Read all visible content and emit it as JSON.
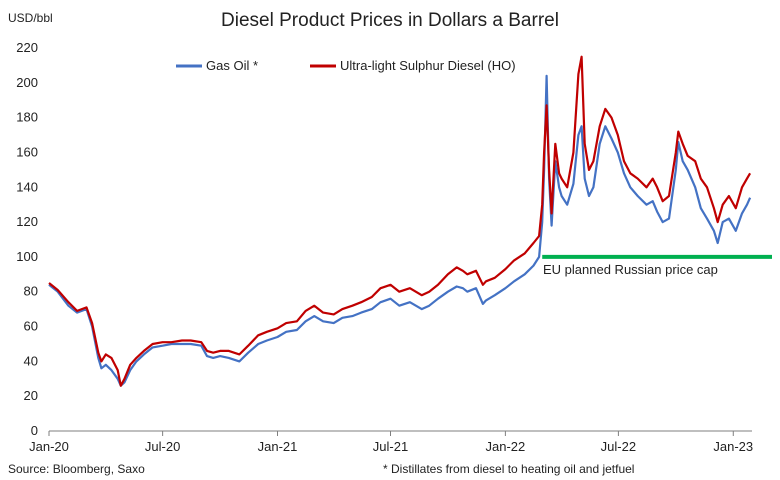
{
  "chart_data": {
    "type": "line",
    "title": "Diesel Product Prices in Dollars a Barrel",
    "ylabel": "USD/bbl",
    "ylim": [
      0,
      220
    ],
    "yticks": [
      "0",
      "20",
      "40",
      "60",
      "80",
      "100",
      "120",
      "140",
      "160",
      "180",
      "200",
      "220"
    ],
    "xlim": [
      "2020-01-01",
      "2023-01-31"
    ],
    "xticks": [
      {
        "date": "2020-01-01",
        "label": "Jan-20"
      },
      {
        "date": "2020-07-01",
        "label": "Jul-20"
      },
      {
        "date": "2021-01-01",
        "label": "Jan-21"
      },
      {
        "date": "2021-07-01",
        "label": "Jul-21"
      },
      {
        "date": "2022-01-01",
        "label": "Jan-22"
      },
      {
        "date": "2022-07-01",
        "label": "Jul-22"
      },
      {
        "date": "2023-01-01",
        "label": "Jan-23"
      }
    ],
    "grid": false,
    "legend_position": "top-center",
    "series": [
      {
        "name": "Gas Oil *",
        "color": "#4472C4",
        "points": [
          [
            "2020-01-01",
            84
          ],
          [
            "2020-01-15",
            80
          ],
          [
            "2020-02-01",
            72
          ],
          [
            "2020-02-15",
            68
          ],
          [
            "2020-03-01",
            70
          ],
          [
            "2020-03-10",
            60
          ],
          [
            "2020-03-20",
            42
          ],
          [
            "2020-03-25",
            36
          ],
          [
            "2020-04-01",
            38
          ],
          [
            "2020-04-10",
            35
          ],
          [
            "2020-04-20",
            30
          ],
          [
            "2020-04-25",
            26
          ],
          [
            "2020-05-01",
            28
          ],
          [
            "2020-05-10",
            35
          ],
          [
            "2020-05-20",
            40
          ],
          [
            "2020-06-01",
            44
          ],
          [
            "2020-06-15",
            48
          ],
          [
            "2020-07-01",
            49
          ],
          [
            "2020-07-15",
            50
          ],
          [
            "2020-08-01",
            50
          ],
          [
            "2020-08-15",
            50
          ],
          [
            "2020-09-01",
            49
          ],
          [
            "2020-09-10",
            43
          ],
          [
            "2020-09-20",
            42
          ],
          [
            "2020-10-01",
            43
          ],
          [
            "2020-10-15",
            42
          ],
          [
            "2020-11-01",
            40
          ],
          [
            "2020-11-15",
            45
          ],
          [
            "2020-12-01",
            50
          ],
          [
            "2020-12-15",
            52
          ],
          [
            "2021-01-01",
            54
          ],
          [
            "2021-01-15",
            57
          ],
          [
            "2021-02-01",
            58
          ],
          [
            "2021-02-15",
            63
          ],
          [
            "2021-03-01",
            66
          ],
          [
            "2021-03-15",
            63
          ],
          [
            "2021-04-01",
            62
          ],
          [
            "2021-04-15",
            65
          ],
          [
            "2021-05-01",
            66
          ],
          [
            "2021-05-15",
            68
          ],
          [
            "2021-06-01",
            70
          ],
          [
            "2021-06-15",
            74
          ],
          [
            "2021-07-01",
            76
          ],
          [
            "2021-07-15",
            72
          ],
          [
            "2021-08-01",
            74
          ],
          [
            "2021-08-20",
            70
          ],
          [
            "2021-09-01",
            72
          ],
          [
            "2021-09-15",
            76
          ],
          [
            "2021-10-01",
            80
          ],
          [
            "2021-10-15",
            83
          ],
          [
            "2021-10-25",
            82
          ],
          [
            "2021-11-01",
            80
          ],
          [
            "2021-11-15",
            82
          ],
          [
            "2021-11-26",
            73
          ],
          [
            "2021-12-01",
            75
          ],
          [
            "2021-12-15",
            78
          ],
          [
            "2022-01-01",
            82
          ],
          [
            "2022-01-15",
            86
          ],
          [
            "2022-02-01",
            90
          ],
          [
            "2022-02-15",
            95
          ],
          [
            "2022-02-24",
            100
          ],
          [
            "2022-03-01",
            120
          ],
          [
            "2022-03-04",
            150
          ],
          [
            "2022-03-08",
            204
          ],
          [
            "2022-03-12",
            145
          ],
          [
            "2022-03-16",
            118
          ],
          [
            "2022-03-22",
            155
          ],
          [
            "2022-03-28",
            140
          ],
          [
            "2022-04-01",
            135
          ],
          [
            "2022-04-10",
            130
          ],
          [
            "2022-04-20",
            142
          ],
          [
            "2022-04-28",
            170
          ],
          [
            "2022-05-03",
            175
          ],
          [
            "2022-05-08",
            145
          ],
          [
            "2022-05-15",
            135
          ],
          [
            "2022-05-22",
            140
          ],
          [
            "2022-06-01",
            165
          ],
          [
            "2022-06-10",
            175
          ],
          [
            "2022-06-20",
            168
          ],
          [
            "2022-06-30",
            160
          ],
          [
            "2022-07-10",
            148
          ],
          [
            "2022-07-20",
            140
          ],
          [
            "2022-08-01",
            135
          ],
          [
            "2022-08-15",
            130
          ],
          [
            "2022-08-25",
            132
          ],
          [
            "2022-09-01",
            126
          ],
          [
            "2022-09-10",
            120
          ],
          [
            "2022-09-20",
            122
          ],
          [
            "2022-10-01",
            150
          ],
          [
            "2022-10-05",
            166
          ],
          [
            "2022-10-12",
            155
          ],
          [
            "2022-10-20",
            150
          ],
          [
            "2022-11-01",
            140
          ],
          [
            "2022-11-10",
            128
          ],
          [
            "2022-11-20",
            122
          ],
          [
            "2022-12-01",
            115
          ],
          [
            "2022-12-07",
            108
          ],
          [
            "2022-12-15",
            120
          ],
          [
            "2022-12-25",
            122
          ],
          [
            "2023-01-05",
            115
          ],
          [
            "2023-01-15",
            125
          ],
          [
            "2023-01-23",
            130
          ],
          [
            "2023-01-28",
            134
          ]
        ]
      },
      {
        "name": "Ultra-light Sulphur Diesel (HO)",
        "color": "#C00000",
        "points": [
          [
            "2020-01-01",
            85
          ],
          [
            "2020-01-15",
            81
          ],
          [
            "2020-02-01",
            74
          ],
          [
            "2020-02-15",
            69
          ],
          [
            "2020-03-01",
            71
          ],
          [
            "2020-03-10",
            62
          ],
          [
            "2020-03-20",
            45
          ],
          [
            "2020-03-25",
            40
          ],
          [
            "2020-04-01",
            44
          ],
          [
            "2020-04-10",
            42
          ],
          [
            "2020-04-20",
            35
          ],
          [
            "2020-04-25",
            26
          ],
          [
            "2020-05-01",
            30
          ],
          [
            "2020-05-10",
            38
          ],
          [
            "2020-05-20",
            42
          ],
          [
            "2020-06-01",
            46
          ],
          [
            "2020-06-15",
            50
          ],
          [
            "2020-07-01",
            51
          ],
          [
            "2020-07-15",
            51
          ],
          [
            "2020-08-01",
            52
          ],
          [
            "2020-08-15",
            52
          ],
          [
            "2020-09-01",
            51
          ],
          [
            "2020-09-10",
            46
          ],
          [
            "2020-09-20",
            45
          ],
          [
            "2020-10-01",
            46
          ],
          [
            "2020-10-15",
            46
          ],
          [
            "2020-11-01",
            44
          ],
          [
            "2020-11-15",
            49
          ],
          [
            "2020-12-01",
            55
          ],
          [
            "2020-12-15",
            57
          ],
          [
            "2021-01-01",
            59
          ],
          [
            "2021-01-15",
            62
          ],
          [
            "2021-02-01",
            63
          ],
          [
            "2021-02-15",
            69
          ],
          [
            "2021-03-01",
            72
          ],
          [
            "2021-03-15",
            68
          ],
          [
            "2021-04-01",
            67
          ],
          [
            "2021-04-15",
            70
          ],
          [
            "2021-05-01",
            72
          ],
          [
            "2021-05-15",
            74
          ],
          [
            "2021-06-01",
            77
          ],
          [
            "2021-06-15",
            82
          ],
          [
            "2021-07-01",
            84
          ],
          [
            "2021-07-15",
            80
          ],
          [
            "2021-08-01",
            82
          ],
          [
            "2021-08-20",
            78
          ],
          [
            "2021-09-01",
            80
          ],
          [
            "2021-09-15",
            84
          ],
          [
            "2021-10-01",
            90
          ],
          [
            "2021-10-15",
            94
          ],
          [
            "2021-10-25",
            92
          ],
          [
            "2021-11-01",
            90
          ],
          [
            "2021-11-15",
            92
          ],
          [
            "2021-11-26",
            84
          ],
          [
            "2021-12-01",
            86
          ],
          [
            "2021-12-15",
            88
          ],
          [
            "2022-01-01",
            93
          ],
          [
            "2022-01-15",
            98
          ],
          [
            "2022-02-01",
            102
          ],
          [
            "2022-02-15",
            108
          ],
          [
            "2022-02-24",
            112
          ],
          [
            "2022-03-01",
            130
          ],
          [
            "2022-03-04",
            160
          ],
          [
            "2022-03-08",
            187
          ],
          [
            "2022-03-12",
            150
          ],
          [
            "2022-03-16",
            125
          ],
          [
            "2022-03-22",
            165
          ],
          [
            "2022-03-28",
            148
          ],
          [
            "2022-04-01",
            145
          ],
          [
            "2022-04-10",
            140
          ],
          [
            "2022-04-20",
            160
          ],
          [
            "2022-04-28",
            205
          ],
          [
            "2022-05-03",
            215
          ],
          [
            "2022-05-08",
            165
          ],
          [
            "2022-05-15",
            150
          ],
          [
            "2022-05-22",
            155
          ],
          [
            "2022-06-01",
            175
          ],
          [
            "2022-06-10",
            185
          ],
          [
            "2022-06-20",
            180
          ],
          [
            "2022-06-30",
            170
          ],
          [
            "2022-07-10",
            155
          ],
          [
            "2022-07-20",
            148
          ],
          [
            "2022-08-01",
            145
          ],
          [
            "2022-08-15",
            140
          ],
          [
            "2022-08-25",
            145
          ],
          [
            "2022-09-01",
            140
          ],
          [
            "2022-09-10",
            132
          ],
          [
            "2022-09-20",
            135
          ],
          [
            "2022-10-01",
            160
          ],
          [
            "2022-10-05",
            172
          ],
          [
            "2022-10-12",
            165
          ],
          [
            "2022-10-20",
            158
          ],
          [
            "2022-11-01",
            155
          ],
          [
            "2022-11-10",
            145
          ],
          [
            "2022-11-20",
            140
          ],
          [
            "2022-12-01",
            128
          ],
          [
            "2022-12-07",
            120
          ],
          [
            "2022-12-15",
            130
          ],
          [
            "2022-12-25",
            135
          ],
          [
            "2023-01-05",
            128
          ],
          [
            "2023-01-15",
            140
          ],
          [
            "2023-01-23",
            145
          ],
          [
            "2023-01-28",
            148
          ]
        ]
      }
    ],
    "reference_line": {
      "label": "EU planned Russian price cap",
      "value": 100,
      "from": "2022-03-01",
      "color": "#00B050"
    },
    "annotations": {
      "source": "Source: Bloomberg, Saxo",
      "footnote": "* Distillates from diesel to heating oil and jetfuel"
    }
  }
}
